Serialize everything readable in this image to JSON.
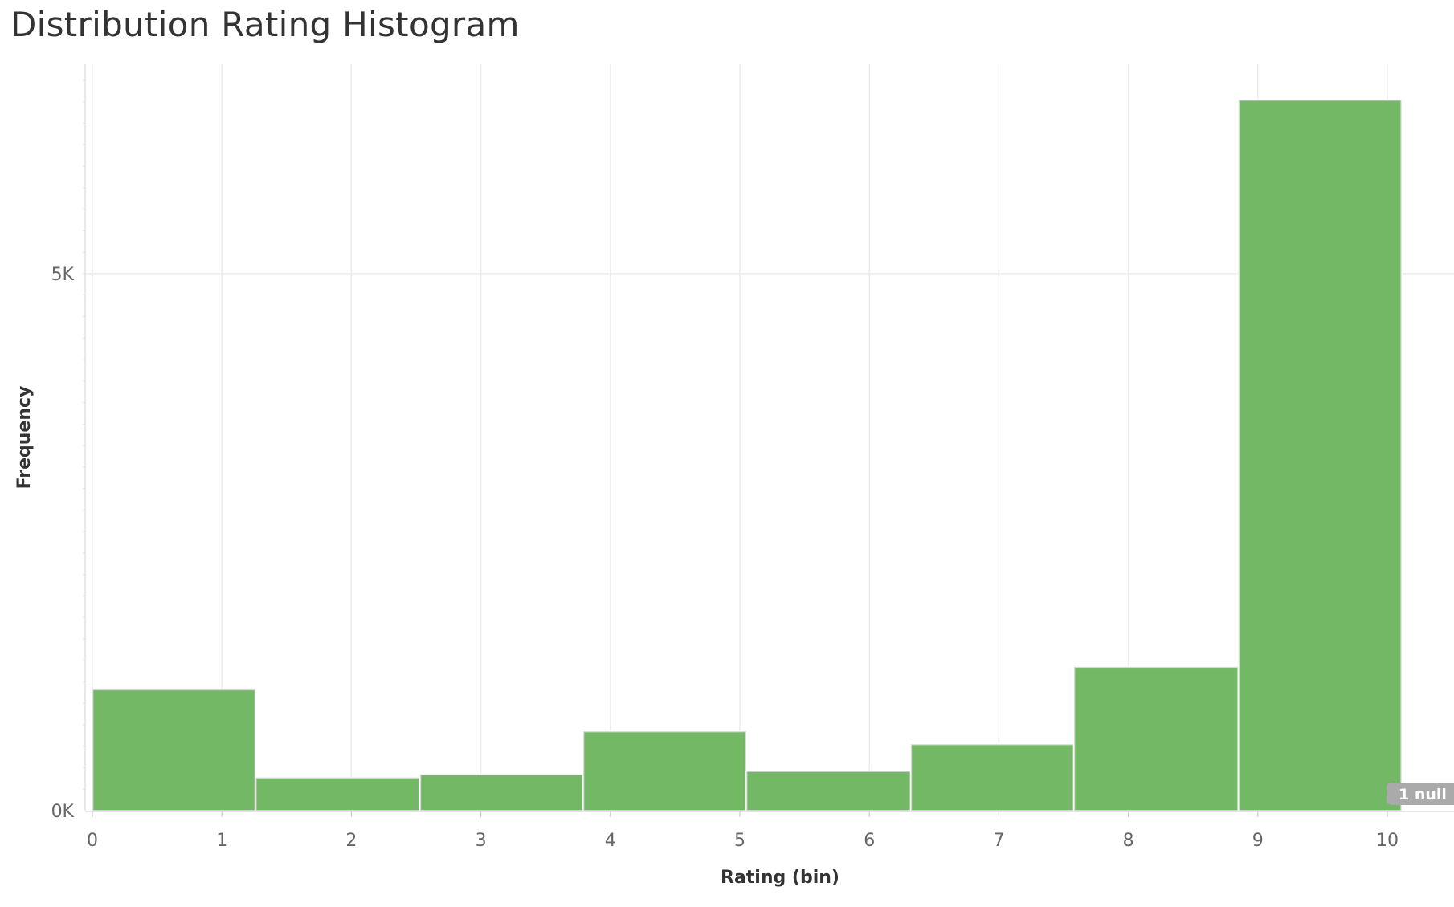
{
  "chart_data": {
    "type": "bar",
    "title": "Distribution Rating Histogram",
    "xlabel": "Rating (bin)",
    "ylabel": "Frequency",
    "x_ticks": [
      "0",
      "1",
      "2",
      "3",
      "4",
      "5",
      "6",
      "7",
      "8",
      "9",
      "10"
    ],
    "y_ticks": [
      {
        "value": 0,
        "label": "0K"
      },
      {
        "value": 5000,
        "label": "5K"
      }
    ],
    "bins": [
      {
        "start": 0.0,
        "end": 1.26,
        "value": 1130
      },
      {
        "start": 1.26,
        "end": 2.53,
        "value": 310
      },
      {
        "start": 2.53,
        "end": 3.79,
        "value": 340
      },
      {
        "start": 3.79,
        "end": 5.05,
        "value": 740
      },
      {
        "start": 5.05,
        "end": 6.32,
        "value": 370
      },
      {
        "start": 6.32,
        "end": 7.58,
        "value": 620
      },
      {
        "start": 7.58,
        "end": 8.85,
        "value": 1340
      },
      {
        "start": 8.85,
        "end": 10.11,
        "value": 6620
      }
    ],
    "xlim": [
      -0.05,
      10.3
    ],
    "ylim": [
      0,
      6950
    ],
    "grid": true,
    "bar_color": "#72b865",
    "null_indicator": "1 null"
  }
}
